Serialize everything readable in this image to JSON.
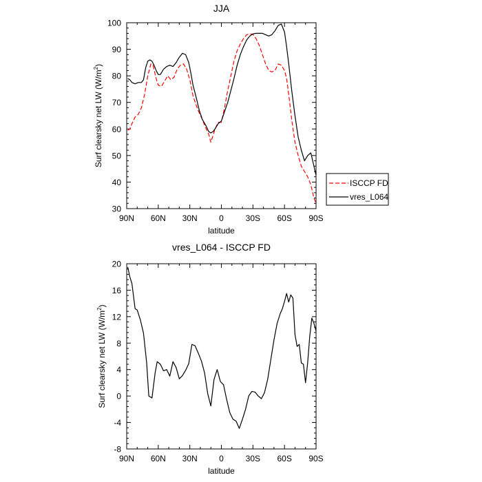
{
  "chart_data": [
    {
      "type": "line",
      "title": "JJA",
      "xlabel": "latitude",
      "ylabel_main": "Surf clearsky net LW (W/m",
      "ylabel_sup": "2",
      "ylabel_close": ")",
      "xlim": [
        -90,
        90
      ],
      "ylim": [
        30,
        100
      ],
      "x_ticks": [
        -90,
        -60,
        -30,
        0,
        30,
        60,
        90
      ],
      "x_tick_labels": [
        "90N",
        "60N",
        "30N",
        "0",
        "30S",
        "60S",
        "90S"
      ],
      "y_ticks": [
        30,
        40,
        50,
        60,
        70,
        80,
        90,
        100
      ],
      "y_tick_labels": [
        "30",
        "40",
        "50",
        "60",
        "70",
        "80",
        "90",
        "100"
      ],
      "series": [
        {
          "name": "ISCCP FD",
          "color": "#ff0000",
          "dash": true,
          "x": [
            -89,
            -87,
            -85,
            -82,
            -79,
            -76,
            -73,
            -70,
            -67,
            -65,
            -62,
            -60,
            -57,
            -54,
            -51,
            -48,
            -45,
            -42,
            -39,
            -36,
            -33,
            -30,
            -27,
            -24,
            -21,
            -18,
            -15,
            -12,
            -10,
            -8,
            -6,
            -3,
            0,
            3,
            6,
            9,
            12,
            15,
            18,
            21,
            24,
            27,
            30,
            33,
            36,
            39,
            42,
            45,
            48,
            51,
            54,
            57,
            60,
            62,
            64,
            67,
            70,
            73,
            76,
            79,
            82,
            85,
            88,
            90
          ],
          "y": [
            59.5,
            60,
            62,
            64.5,
            65.5,
            68,
            73,
            80,
            84.5,
            84,
            79,
            76.5,
            76,
            78,
            80,
            78.5,
            79.5,
            82.5,
            84,
            84.5,
            82.5,
            78.5,
            72.5,
            69,
            66,
            63.5,
            60.5,
            58,
            55,
            57.5,
            60,
            62.5,
            62.5,
            68,
            74.5,
            80,
            85.5,
            89.5,
            92,
            94,
            95.5,
            95.8,
            95.6,
            94,
            91.5,
            88,
            84.5,
            82,
            81.5,
            82,
            84.5,
            84,
            82,
            79,
            73,
            63,
            55,
            50,
            46,
            44,
            42,
            39,
            34,
            32
          ]
        },
        {
          "name": "vres_L064",
          "color": "#000000",
          "dash": false,
          "x": [
            -89,
            -87,
            -85,
            -82,
            -79,
            -76,
            -74,
            -72,
            -70,
            -68,
            -66,
            -64,
            -62,
            -60,
            -58,
            -55,
            -52,
            -49,
            -46,
            -43,
            -40,
            -37,
            -34,
            -31,
            -29,
            -27,
            -24,
            -21,
            -18,
            -15,
            -12,
            -10,
            -8,
            -6,
            -3,
            0,
            3,
            6,
            9,
            12,
            15,
            18,
            21,
            24,
            27,
            30,
            33,
            36,
            39,
            42,
            45,
            48,
            51,
            54,
            57,
            60,
            62,
            64,
            67,
            70,
            73,
            76,
            79,
            82,
            85,
            88,
            90
          ],
          "y": [
            79,
            78.5,
            77.5,
            77,
            77.5,
            77.5,
            78.5,
            83,
            85.5,
            86,
            85.5,
            84,
            82,
            80.5,
            80.5,
            82.5,
            83.5,
            84,
            83.5,
            85,
            87,
            88.5,
            88,
            85,
            81,
            76.5,
            72,
            67,
            63.5,
            61.5,
            59,
            58.5,
            59,
            60,
            62,
            63,
            66.5,
            70,
            74.5,
            79,
            84,
            88,
            91,
            93.5,
            95,
            95.8,
            96,
            96,
            96,
            95.5,
            95,
            95.5,
            97,
            99,
            99.5,
            96.5,
            91,
            84.5,
            74,
            65,
            57,
            52,
            48,
            50,
            51,
            46,
            42.5
          ]
        }
      ],
      "legend": [
        "ISCCP FD",
        "vres_L064"
      ]
    },
    {
      "type": "line",
      "title": "vres_L064 - ISCCP FD",
      "xlabel": "latitude",
      "ylabel_main": "Surf clearsky net LW (W/m",
      "ylabel_sup": "2",
      "ylabel_close": ")",
      "xlim": [
        -90,
        90
      ],
      "ylim": [
        -8,
        20
      ],
      "x_ticks": [
        -90,
        -60,
        -30,
        0,
        30,
        60,
        90
      ],
      "x_tick_labels": [
        "90N",
        "60N",
        "30N",
        "0",
        "30S",
        "60S",
        "90S"
      ],
      "y_ticks": [
        -8,
        -4,
        0,
        4,
        8,
        12,
        16,
        20
      ],
      "y_tick_labels": [
        "-8",
        "-4",
        "0",
        "4",
        "8",
        "12",
        "16",
        "20"
      ],
      "series": [
        {
          "name": "vres_L064 - ISCCP FD",
          "color": "#000000",
          "dash": false,
          "x": [
            -89,
            -87,
            -85,
            -82,
            -80,
            -77,
            -74,
            -71,
            -69,
            -66,
            -63,
            -61,
            -58,
            -55,
            -52,
            -49,
            -46,
            -43,
            -40,
            -37,
            -34,
            -31,
            -28,
            -25,
            -22,
            -19,
            -16,
            -13,
            -10,
            -7,
            -4,
            -1,
            2,
            5,
            8,
            11,
            14,
            17,
            20,
            23,
            26,
            29,
            32,
            35,
            38,
            41,
            44,
            47,
            50,
            53,
            56,
            58,
            60,
            62,
            64,
            66,
            68,
            70,
            72,
            74,
            76,
            78,
            80,
            82,
            84,
            86,
            88,
            90
          ],
          "y": [
            19.5,
            18,
            17,
            13.2,
            13,
            11.5,
            9.5,
            5,
            0,
            -0.3,
            3.5,
            5.2,
            4.8,
            3.8,
            4,
            3,
            5.2,
            4.3,
            2.6,
            3.1,
            3.9,
            4.9,
            7.8,
            7.6,
            6.5,
            5.3,
            3.5,
            0.4,
            -1.5,
            2.5,
            4,
            2.2,
            1.7,
            -0.5,
            -2.5,
            -3.5,
            -3.8,
            -4.9,
            -3.5,
            -2,
            0,
            0.7,
            0.6,
            0,
            -0.4,
            0.5,
            2.5,
            5.5,
            8.5,
            11,
            12.5,
            13.2,
            14.3,
            15.5,
            14.2,
            15.3,
            14.8,
            9.3,
            7.5,
            7.8,
            5,
            4.8,
            2,
            5,
            9,
            11.8,
            11,
            9.8
          ]
        }
      ]
    }
  ]
}
